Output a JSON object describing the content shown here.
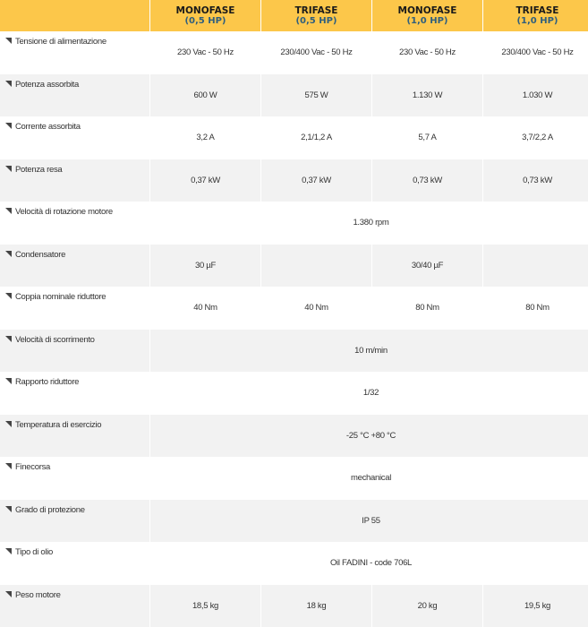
{
  "header": [
    {
      "title": "MONOFASE",
      "sub": "(0,5 HP)"
    },
    {
      "title": "TRIFASE",
      "sub": "(0,5 HP)"
    },
    {
      "title": "MONOFASE",
      "sub": "(1,0 HP)"
    },
    {
      "title": "TRIFASE",
      "sub": "(1,0 HP)"
    }
  ],
  "rows": [
    {
      "label": "Tensione di alimentazione",
      "values": [
        "230 Vac - 50 Hz",
        "230/400 Vac - 50 Hz",
        "230 Vac - 50 Hz",
        "230/400 Vac - 50 Hz"
      ]
    },
    {
      "label": "Potenza assorbita",
      "values": [
        "600 W",
        "575 W",
        "1.130 W",
        "1.030 W"
      ]
    },
    {
      "label": "Corrente assorbita",
      "values": [
        "3,2 A",
        "2,1/1,2 A",
        "5,7 A",
        "3,7/2,2 A"
      ]
    },
    {
      "label": "Potenza resa",
      "values": [
        "0,37 kW",
        "0,37 kW",
        "0,73 kW",
        "0,73 kW"
      ]
    },
    {
      "label": "Velocità di rotazione motore",
      "value": "1.380 rpm"
    },
    {
      "label": "Condensatore",
      "values": [
        "30 µF",
        "",
        "30/40 µF",
        ""
      ]
    },
    {
      "label": "Coppia nominale riduttore",
      "values": [
        "40 Nm",
        "40 Nm",
        "80 Nm",
        "80 Nm"
      ]
    },
    {
      "label": "Velocità di scorrimento",
      "value": "10 m/min"
    },
    {
      "label": "Rapporto riduttore",
      "value": "1/32"
    },
    {
      "label": "Temperatura di esercizio",
      "value": "-25 °C +80 °C"
    },
    {
      "label": "Finecorsa",
      "value": "mechanical"
    },
    {
      "label": "Grado di protezione",
      "value": "IP 55"
    },
    {
      "label": "Tipo di olio",
      "value": "Oil FADINI - code 706L"
    },
    {
      "label": "Peso motore",
      "values": [
        "18,5 kg",
        "18 kg",
        "20 kg",
        "19,5 kg"
      ]
    }
  ],
  "colors": {
    "header_bg": "#fcc74a",
    "header_sub": "#2f5f7e",
    "stripe": "#f2f2f2"
  }
}
